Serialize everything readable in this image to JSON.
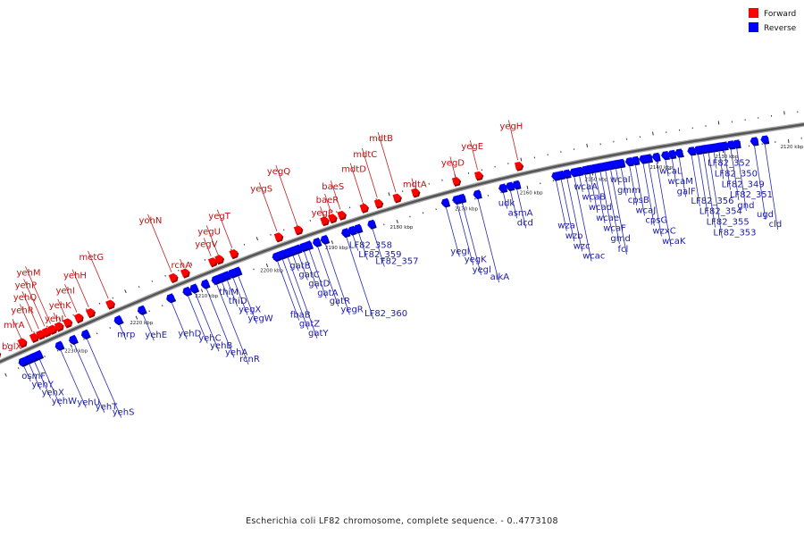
{
  "legend": [
    {
      "name": "Forward",
      "color": "#ff0000"
    },
    {
      "name": "Reverse",
      "color": "#0000ff"
    }
  ],
  "caption": "Escherichia coli LF82 chromosome, complete sequence. - 0..4773108",
  "ticks": [
    {
      "label": "2230 kbp",
      "kbp": 2230
    },
    {
      "label": "2220 kbp",
      "kbp": 2220
    },
    {
      "label": "2210 kbp",
      "kbp": 2210
    },
    {
      "label": "2200 kbp",
      "kbp": 2200
    },
    {
      "label": "2190 kbp",
      "kbp": 2190
    },
    {
      "label": "2180 kbp",
      "kbp": 2180
    },
    {
      "label": "2170 kbp",
      "kbp": 2170
    },
    {
      "label": "2160 kbp",
      "kbp": 2160
    },
    {
      "label": "2150 kbp",
      "kbp": 2150
    },
    {
      "label": "2140 kbp",
      "kbp": 2140
    },
    {
      "label": "2130 kbp",
      "kbp": 2130
    },
    {
      "label": "2120 kbp",
      "kbp": 2120
    }
  ],
  "reverse_genes": [
    {
      "name": "osmF",
      "kbp": 2237.2
    },
    {
      "name": "yehY",
      "kbp": 2236.4
    },
    {
      "name": "yehX",
      "kbp": 2235.6
    },
    {
      "name": "yehW",
      "kbp": 2234.8
    },
    {
      "name": "yehU",
      "kbp": 2231.6
    },
    {
      "name": "yehT",
      "kbp": 2229.5
    },
    {
      "name": "yehS",
      "kbp": 2227.6
    },
    {
      "name": "mrp",
      "kbp": 2222.6
    },
    {
      "name": "yehE",
      "kbp": 2219.0
    },
    {
      "name": "yehD",
      "kbp": 2214.6
    },
    {
      "name": "yehC",
      "kbp": 2212.1
    },
    {
      "name": "yehB",
      "kbp": 2211.0
    },
    {
      "name": "yehA",
      "kbp": 2209.3
    },
    {
      "name": "rcnR",
      "kbp": 2207.7
    },
    {
      "name": "thiM",
      "kbp": 2206.9
    },
    {
      "name": "thiD",
      "kbp": 2206.1
    },
    {
      "name": "yegX",
      "kbp": 2205.2
    },
    {
      "name": "yegW",
      "kbp": 2204.4
    },
    {
      "name": "fbaB",
      "kbp": 2198.4
    },
    {
      "name": "gatZ",
      "kbp": 2197.6
    },
    {
      "name": "gatY",
      "kbp": 2196.8
    },
    {
      "name": "gatB",
      "kbp": 2196.0
    },
    {
      "name": "gatC",
      "kbp": 2195.2
    },
    {
      "name": "gatD",
      "kbp": 2194.3
    },
    {
      "name": "gatA",
      "kbp": 2193.5
    },
    {
      "name": "gatR",
      "kbp": 2192.2
    },
    {
      "name": "yegR",
      "kbp": 2191.0
    },
    {
      "name": "LF82_360",
      "kbp": 2187.8
    },
    {
      "name": "LF82_358",
      "kbp": 2186.8
    },
    {
      "name": "LF82_359",
      "kbp": 2185.9
    },
    {
      "name": "LF82_357",
      "kbp": 2183.8
    },
    {
      "name": "yegI",
      "kbp": 2172.5
    },
    {
      "name": "yegK",
      "kbp": 2170.8
    },
    {
      "name": "yegl",
      "kbp": 2170.0
    },
    {
      "name": "alkA",
      "kbp": 2167.6
    },
    {
      "name": "udk",
      "kbp": 2163.7
    },
    {
      "name": "asmA",
      "kbp": 2162.6
    },
    {
      "name": "dcd",
      "kbp": 2161.6
    },
    {
      "name": "wza",
      "kbp": 2155.6
    },
    {
      "name": "wzb",
      "kbp": 2154.8
    },
    {
      "name": "wzc",
      "kbp": 2153.9
    },
    {
      "name": "wcac",
      "kbp": 2152.8
    },
    {
      "name": "wcaA",
      "kbp": 2152.0
    },
    {
      "name": "wcaB",
      "kbp": 2151.1
    },
    {
      "name": "wcad",
      "kbp": 2150.4
    },
    {
      "name": "wcae",
      "kbp": 2149.6
    },
    {
      "name": "wcaF",
      "kbp": 2148.8
    },
    {
      "name": "gmd",
      "kbp": 2148.0
    },
    {
      "name": "fcl",
      "kbp": 2147.2
    },
    {
      "name": "wcaI",
      "kbp": 2146.4
    },
    {
      "name": "gmm",
      "kbp": 2145.6
    },
    {
      "name": "cpsB",
      "kbp": 2144.3
    },
    {
      "name": "wcaJ",
      "kbp": 2143.4
    },
    {
      "name": "cpsG",
      "kbp": 2142.2
    },
    {
      "name": "wzxC",
      "kbp": 2141.4
    },
    {
      "name": "wcaK",
      "kbp": 2140.2
    },
    {
      "name": "wcaL",
      "kbp": 2138.8
    },
    {
      "name": "wcaM",
      "kbp": 2137.8
    },
    {
      "name": "galF",
      "kbp": 2136.7
    },
    {
      "name": "LF82_356",
      "kbp": 2134.8
    },
    {
      "name": "LF82_354",
      "kbp": 2133.8
    },
    {
      "name": "LF82_355",
      "kbp": 2133.0
    },
    {
      "name": "LF82_353",
      "kbp": 2132.2
    },
    {
      "name": "LF82_352",
      "kbp": 2131.4
    },
    {
      "name": "LF82_350",
      "kbp": 2130.6
    },
    {
      "name": "LF82_349",
      "kbp": 2129.8
    },
    {
      "name": "LF82_351",
      "kbp": 2128.8
    },
    {
      "name": "gnd",
      "kbp": 2127.9
    },
    {
      "name": "ugd",
      "kbp": 2125.2
    },
    {
      "name": "cld",
      "kbp": 2123.6
    }
  ],
  "forward_genes": [
    {
      "name": "bglX",
      "kbp": 2240.0
    },
    {
      "name": "mlrA",
      "kbp": 2236.0
    },
    {
      "name": "yehR",
      "kbp": 2234.2
    },
    {
      "name": "yehQ",
      "kbp": 2233.2
    },
    {
      "name": "yehP",
      "kbp": 2232.3
    },
    {
      "name": "yehM",
      "kbp": 2231.4
    },
    {
      "name": "yehL",
      "kbp": 2230.4
    },
    {
      "name": "yehK",
      "kbp": 2229.1
    },
    {
      "name": "yehI",
      "kbp": 2227.4
    },
    {
      "name": "yehH",
      "kbp": 2225.6
    },
    {
      "name": "metG",
      "kbp": 2222.6
    },
    {
      "name": "yohN",
      "kbp": 2213.0
    },
    {
      "name": "rcnA",
      "kbp": 2211.2
    },
    {
      "name": "yegV",
      "kbp": 2207.0
    },
    {
      "name": "yegU",
      "kbp": 2206.0
    },
    {
      "name": "yegT",
      "kbp": 2203.8
    },
    {
      "name": "yegS",
      "kbp": 2197.0
    },
    {
      "name": "yegQ",
      "kbp": 2194.0
    },
    {
      "name": "yegP",
      "kbp": 2190.0
    },
    {
      "name": "baeR",
      "kbp": 2188.8
    },
    {
      "name": "baeS",
      "kbp": 2187.4
    },
    {
      "name": "mdtD",
      "kbp": 2184.0
    },
    {
      "name": "mdtC",
      "kbp": 2181.8
    },
    {
      "name": "mdtB",
      "kbp": 2179.0
    },
    {
      "name": "mdtA",
      "kbp": 2176.2
    },
    {
      "name": "yegD",
      "kbp": 2170.0
    },
    {
      "name": "yegE",
      "kbp": 2166.6
    },
    {
      "name": "yegH",
      "kbp": 2160.5
    }
  ]
}
